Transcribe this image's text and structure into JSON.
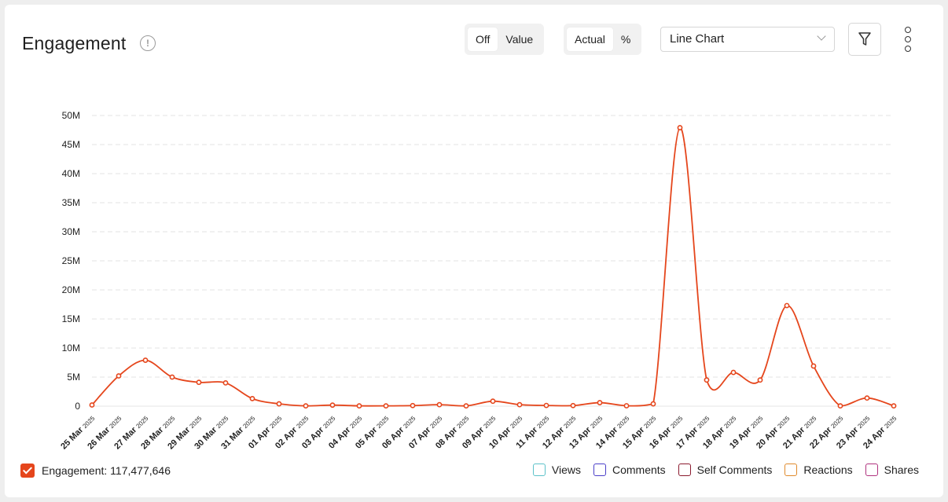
{
  "header": {
    "title": "Engagement",
    "info_icon": "info-circle-icon"
  },
  "toggles": {
    "labels": {
      "off": "Off",
      "value": "Value",
      "active": "Off"
    },
    "mode": {
      "actual": "Actual",
      "percent": "%",
      "active": "Actual"
    }
  },
  "chart_type_select": {
    "value": "Line Chart"
  },
  "icons": {
    "filter": "funnel-icon",
    "more": "vertical-dots-icon"
  },
  "legend": {
    "primary": {
      "label": "Engagement: 117,477,646",
      "checked": true,
      "color": "#e5461c"
    },
    "others": [
      {
        "label": "Views",
        "color": "#5cc2c9"
      },
      {
        "label": "Comments",
        "color": "#4b3fc9"
      },
      {
        "label": "Self Comments",
        "color": "#8b1a2e"
      },
      {
        "label": "Reactions",
        "color": "#e08a2c"
      },
      {
        "label": "Shares",
        "color": "#b0337f"
      }
    ]
  },
  "chart_data": {
    "type": "line",
    "title": "",
    "xlabel": "",
    "ylabel": "",
    "ylim": [
      0,
      50000000
    ],
    "y_ticks": [
      "0",
      "5M",
      "10M",
      "15M",
      "20M",
      "25M",
      "30M",
      "35M",
      "40M",
      "45M",
      "50M"
    ],
    "grid": true,
    "categories": [
      "25 Mar 2025",
      "26 Mar 2025",
      "27 Mar 2025",
      "28 Mar 2025",
      "29 Mar 2025",
      "30 Mar 2025",
      "31 Mar 2025",
      "01 Apr 2025",
      "02 Apr 2025",
      "03 Apr 2025",
      "04 Apr 2025",
      "05 Apr 2025",
      "06 Apr 2025",
      "07 Apr 2025",
      "08 Apr 2025",
      "09 Apr 2025",
      "10 Apr 2025",
      "11 Apr 2025",
      "12 Apr 2025",
      "13 Apr 2025",
      "14 Apr 2025",
      "15 Apr 2025",
      "16 Apr 2025",
      "17 Apr 2025",
      "18 Apr 2025",
      "19 Apr 2025",
      "20 Apr 2025",
      "21 Apr 2025",
      "22 Apr 2025",
      "23 Apr 2025",
      "24 Apr 2025"
    ],
    "series": [
      {
        "name": "Engagement",
        "color": "#e5461c",
        "values": [
          200000,
          5200000,
          7900000,
          5000000,
          4100000,
          4000000,
          1300000,
          400000,
          50000,
          180000,
          50000,
          50000,
          100000,
          250000,
          50000,
          850000,
          250000,
          120000,
          100000,
          600000,
          70000,
          400000,
          47900000,
          4500000,
          5800000,
          4500000,
          17300000,
          6900000,
          50000,
          1400000,
          50000
        ]
      }
    ]
  }
}
